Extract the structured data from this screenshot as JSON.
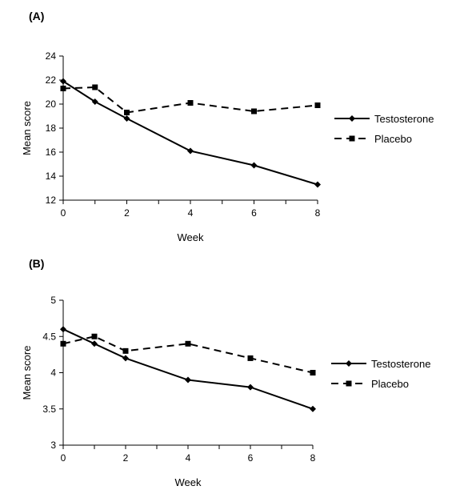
{
  "chart_data": [
    {
      "type": "line",
      "panel_label": "(A)",
      "xlabel": "Week",
      "ylabel": "Mean score",
      "xlim": [
        0,
        8
      ],
      "ylim": [
        12,
        24
      ],
      "xticks": [
        "0",
        "2",
        "4",
        "6",
        "8"
      ],
      "yticks": [
        "12",
        "14",
        "16",
        "18",
        "20",
        "22",
        "24"
      ],
      "grid": false,
      "legend_position": "right",
      "series": [
        {
          "name": "Testosterone",
          "line_style": "solid",
          "marker": "diamond",
          "color": "#000000",
          "x": [
            0,
            1,
            2,
            4,
            6,
            8
          ],
          "y": [
            21.9,
            20.2,
            18.8,
            16.1,
            14.9,
            13.3
          ]
        },
        {
          "name": "Placebo",
          "line_style": "dashed",
          "marker": "square",
          "color": "#000000",
          "x": [
            0,
            1,
            2,
            4,
            6,
            8
          ],
          "y": [
            21.3,
            21.4,
            19.3,
            20.1,
            19.4,
            19.9
          ]
        }
      ]
    },
    {
      "type": "line",
      "panel_label": "(B)",
      "xlabel": "Week",
      "ylabel": "Mean score",
      "xlim": [
        0,
        8
      ],
      "ylim": [
        3,
        5
      ],
      "xticks": [
        "0",
        "2",
        "4",
        "6",
        "8"
      ],
      "yticks": [
        "3",
        "3.5",
        "4",
        "4.5",
        "5"
      ],
      "grid": false,
      "legend_position": "right",
      "series": [
        {
          "name": "Testosterone",
          "line_style": "solid",
          "marker": "diamond",
          "color": "#000000",
          "x": [
            0,
            1,
            2,
            4,
            6,
            8
          ],
          "y": [
            4.6,
            4.4,
            4.2,
            3.9,
            3.8,
            3.5
          ]
        },
        {
          "name": "Placebo",
          "line_style": "dashed",
          "marker": "square",
          "color": "#000000",
          "x": [
            0,
            1,
            2,
            4,
            6,
            8
          ],
          "y": [
            4.4,
            4.5,
            4.3,
            4.4,
            4.2,
            4.0
          ]
        }
      ]
    }
  ]
}
